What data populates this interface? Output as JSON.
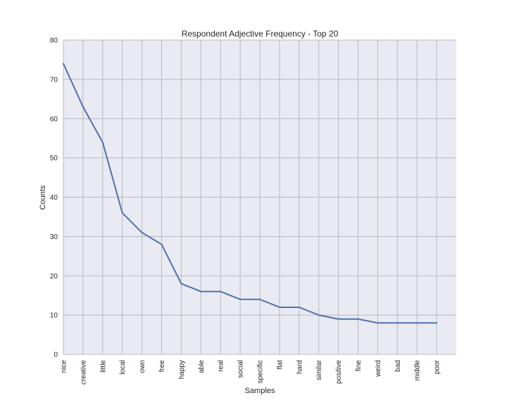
{
  "chart_data": {
    "type": "line",
    "title": "Respondent Adjective Frequency - Top 20",
    "xlabel": "Samples",
    "ylabel": "Counts",
    "categories": [
      "nice",
      "creative",
      "little",
      "local",
      "own",
      "free",
      "happy",
      "able",
      "real",
      "social",
      "specific",
      "flat",
      "hard",
      "similar",
      "positive",
      "fine",
      "weird",
      "bad",
      "middle",
      "poor"
    ],
    "series": [
      {
        "values": [
          74,
          63,
          54,
          36,
          31,
          28,
          18,
          16,
          16,
          14,
          14,
          12,
          12,
          10,
          9,
          9,
          8,
          8,
          8,
          8
        ]
      }
    ],
    "ylim": [
      0,
      80
    ],
    "yticks": [
      0,
      10,
      20,
      30,
      40,
      50,
      60,
      70,
      80
    ],
    "grid": true,
    "legend": "none",
    "colors": {
      "line": "#4c72b0",
      "plot_background": "#eaeaf2",
      "grid": "#b8b8c0"
    }
  }
}
